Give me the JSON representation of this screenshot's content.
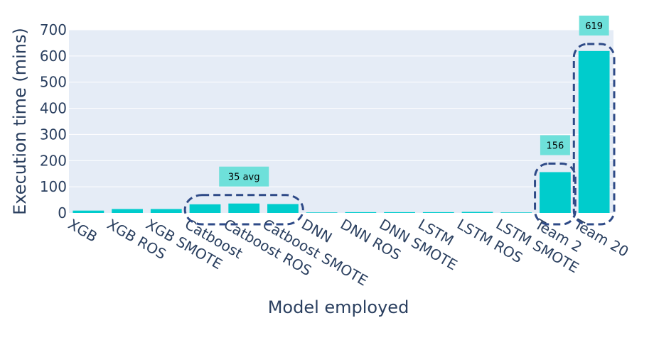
{
  "chart_data": {
    "type": "bar",
    "xlabel": "Model employed",
    "ylabel": "Execution time (mins)",
    "ylim": [
      0,
      700
    ],
    "yticks": [
      0,
      100,
      200,
      300,
      400,
      500,
      600,
      700
    ],
    "grid": true,
    "categories": [
      "XGB",
      "XGB ROS",
      "XGB SMOTE",
      "Catboost",
      "Catboost ROS",
      "Catboost SMOTE",
      "DNN",
      "DNN ROS",
      "DNN SMOTE",
      "LSTM",
      "LSTM ROS",
      "LSTM SMOTE",
      "Team 2",
      "Team 20"
    ],
    "values": [
      9,
      15,
      15,
      33,
      36,
      34,
      2,
      3,
      3,
      3,
      4,
      2,
      156,
      619
    ],
    "annotations": [
      {
        "text": "35 avg",
        "categories": [
          "Catboost",
          "Catboost ROS",
          "Catboost SMOTE"
        ]
      },
      {
        "text": "156",
        "categories": [
          "Team 2"
        ]
      },
      {
        "text": "619",
        "categories": [
          "Team 20"
        ]
      }
    ]
  },
  "colors": {
    "bar": "#00cccc",
    "plot_bg": "#e5ecf6",
    "grid": "#ffffff",
    "box_line": "#2e4a87",
    "label_bg": "#6ee0da",
    "text": "#2a3f5f"
  }
}
